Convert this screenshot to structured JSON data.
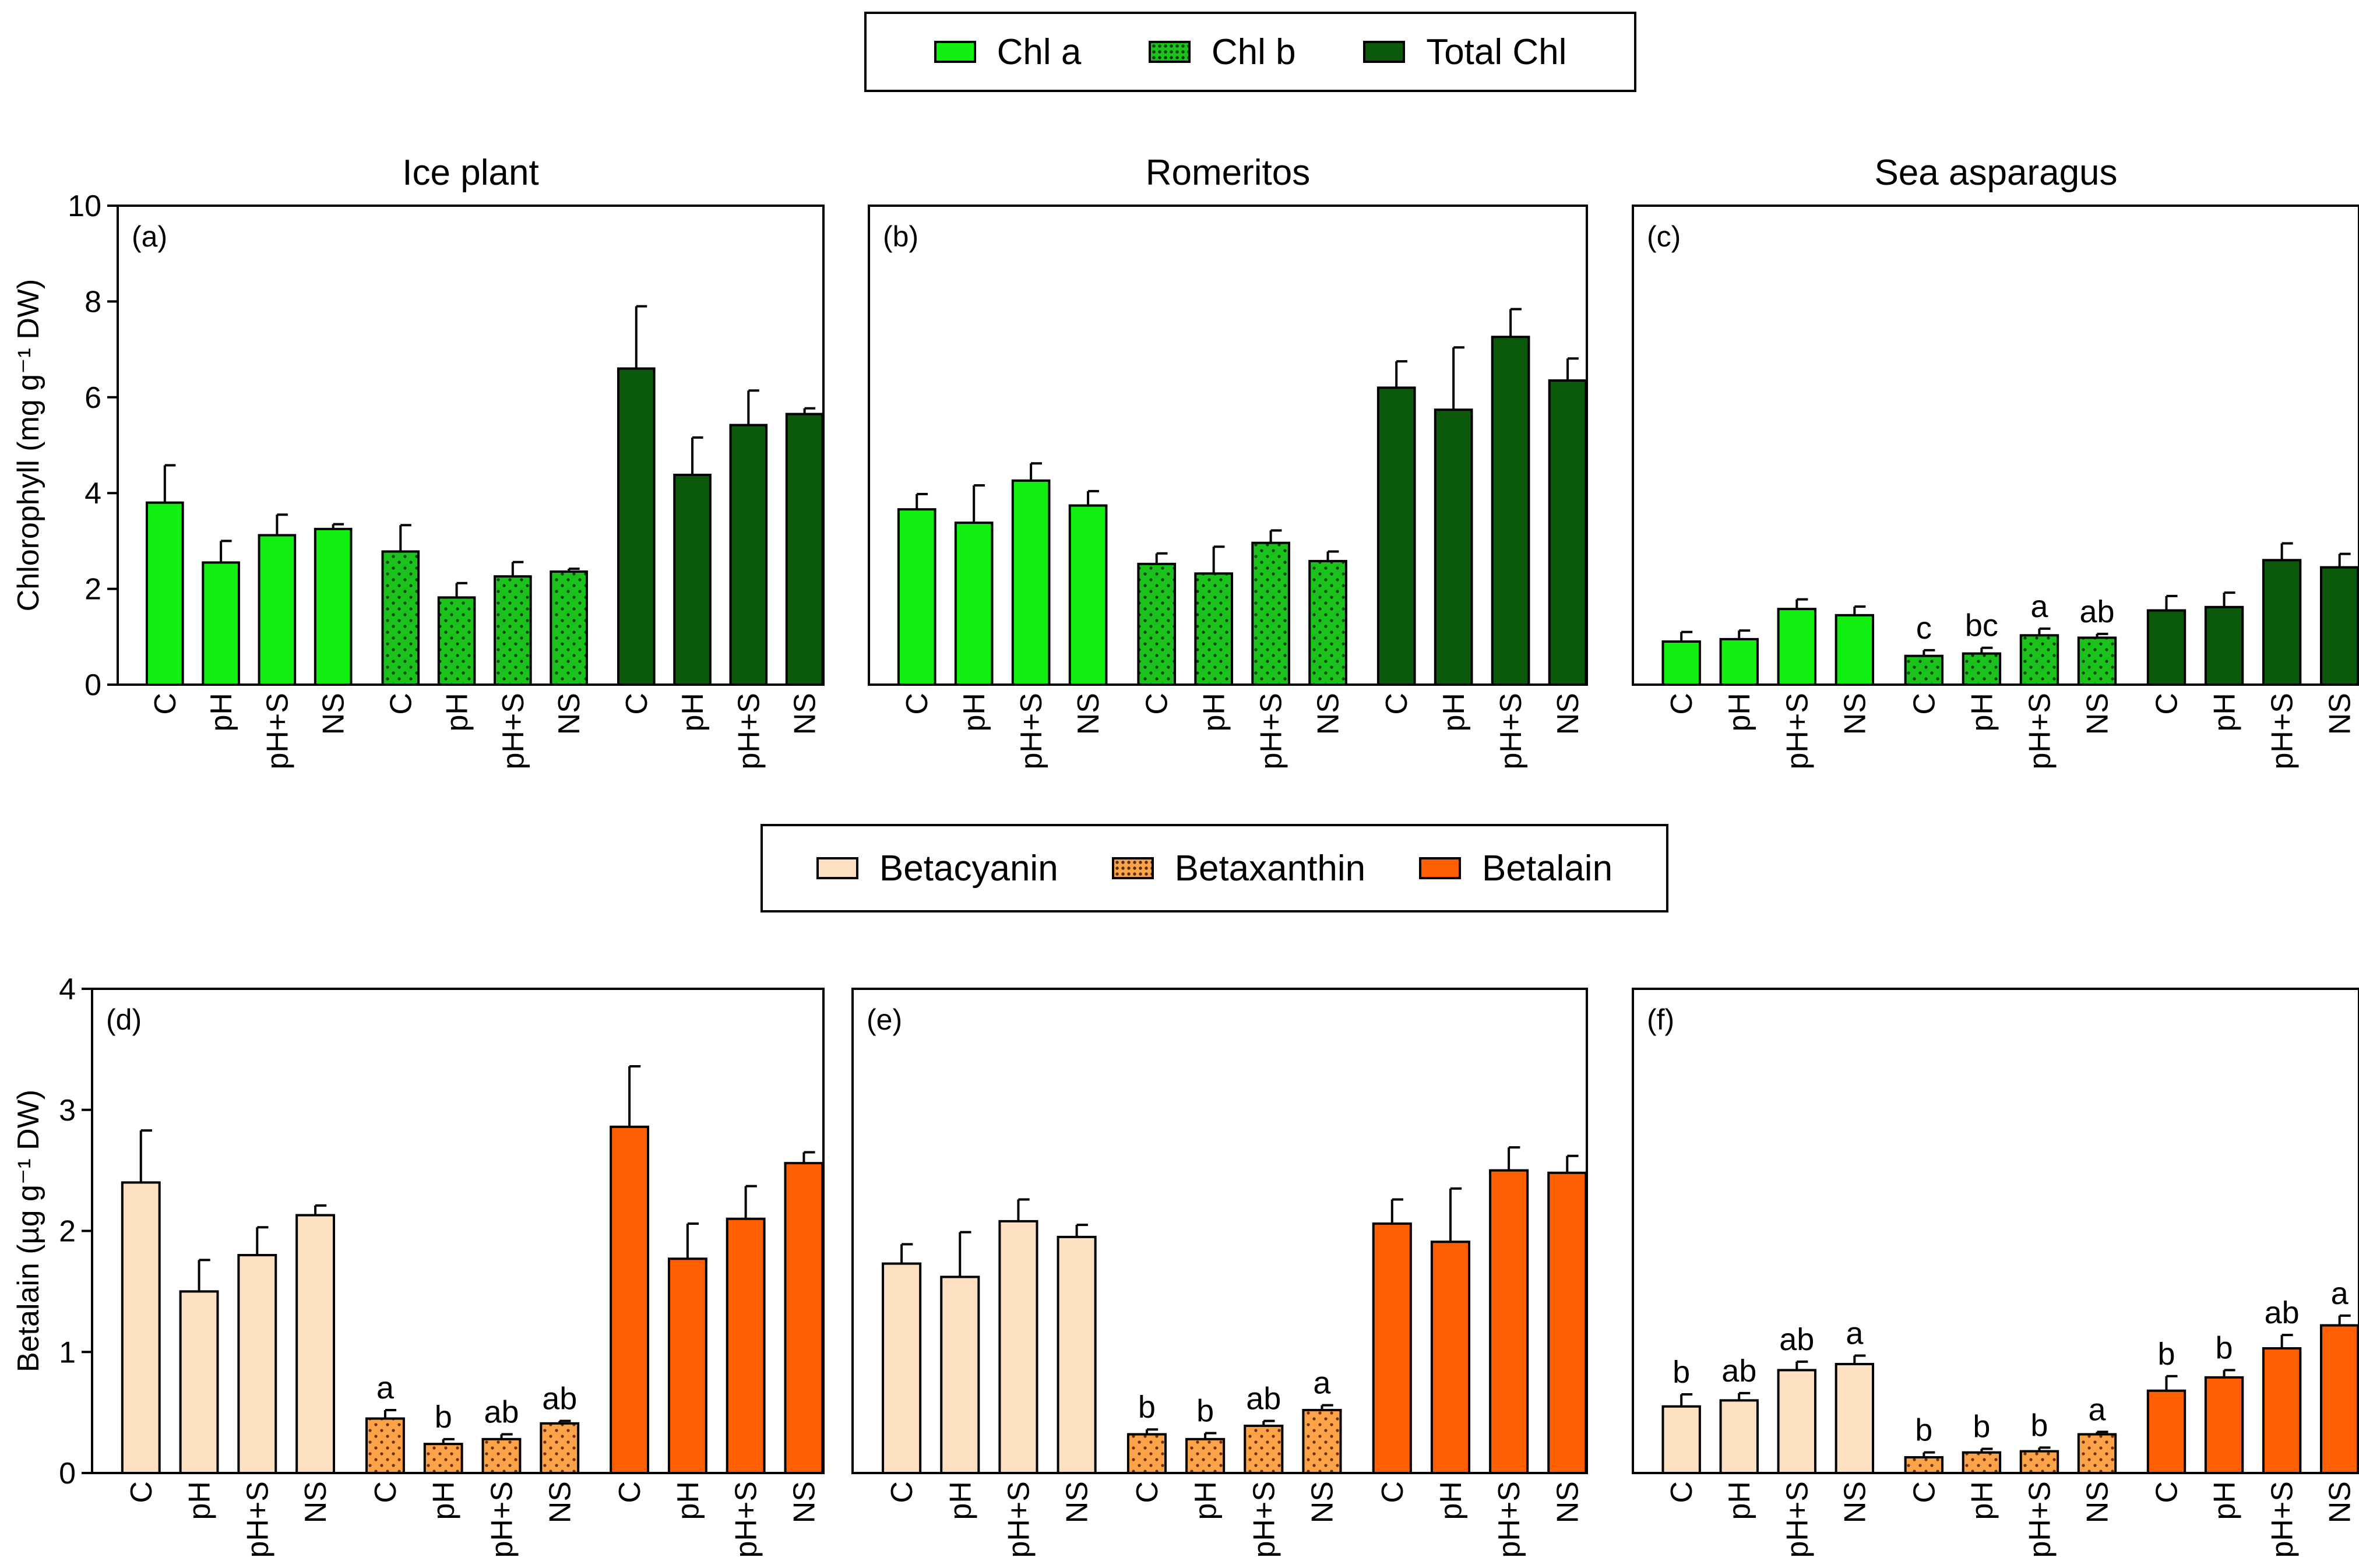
{
  "colors": {
    "chl_a": "#11f011",
    "chl_b": "#1cc21c",
    "total_chl": "#0b5a0b",
    "betacyanin": "#fde0bf",
    "betaxanthin": "#fca349",
    "betalain": "#ff5f00"
  },
  "legends": {
    "chlorophyll": [
      {
        "label": "Chl a",
        "color": "#11f011",
        "pattern": "none"
      },
      {
        "label": "Chl b",
        "color": "#1cc21c",
        "pattern": "dots"
      },
      {
        "label": "Total Chl",
        "color": "#0b5a0b",
        "pattern": "none"
      }
    ],
    "betalain": [
      {
        "label": "Betacyanin",
        "color": "#fde0bf",
        "pattern": "none"
      },
      {
        "label": "Betaxanthin",
        "color": "#fca349",
        "pattern": "dots"
      },
      {
        "label": "Betalain",
        "color": "#ff5f00",
        "pattern": "none"
      }
    ]
  },
  "chart_data": [
    {
      "type": "bar",
      "panel": "(a)",
      "title": "Ice plant",
      "ylabel": "Chlorophyll (mg g⁻¹ DW)",
      "ylim": [
        0,
        10
      ],
      "yticks": [
        0,
        2,
        4,
        6,
        8,
        10
      ],
      "categories": [
        "C",
        "pH",
        "pH+S",
        "NS"
      ],
      "series": [
        {
          "name": "Chl a",
          "values": [
            3.8,
            2.55,
            3.12,
            3.25
          ],
          "errors": [
            0.78,
            0.45,
            0.43,
            0.1
          ],
          "labels": [
            "",
            "",
            "",
            ""
          ]
        },
        {
          "name": "Chl b",
          "values": [
            2.78,
            1.82,
            2.26,
            2.36
          ],
          "errors": [
            0.55,
            0.3,
            0.3,
            0.06
          ],
          "labels": [
            "",
            "",
            "",
            ""
          ]
        },
        {
          "name": "Total Chl",
          "values": [
            6.6,
            4.38,
            5.42,
            5.65
          ],
          "errors": [
            1.3,
            0.78,
            0.72,
            0.12
          ],
          "labels": [
            "",
            "",
            "",
            ""
          ]
        }
      ]
    },
    {
      "type": "bar",
      "panel": "(b)",
      "title": "Romeritos",
      "ylabel": "",
      "ylim": [
        0,
        10
      ],
      "yticks": [],
      "categories": [
        "C",
        "pH",
        "pH+S",
        "NS"
      ],
      "series": [
        {
          "name": "Chl a",
          "values": [
            3.66,
            3.38,
            4.26,
            3.74
          ],
          "errors": [
            0.32,
            0.78,
            0.36,
            0.3
          ],
          "labels": [
            "",
            "",
            "",
            ""
          ]
        },
        {
          "name": "Chl b",
          "values": [
            2.52,
            2.32,
            2.96,
            2.58
          ],
          "errors": [
            0.22,
            0.56,
            0.26,
            0.2
          ],
          "labels": [
            "",
            "",
            "",
            ""
          ]
        },
        {
          "name": "Total Chl",
          "values": [
            6.2,
            5.74,
            7.26,
            6.35
          ],
          "errors": [
            0.55,
            1.3,
            0.58,
            0.46
          ],
          "labels": [
            "",
            "",
            "",
            ""
          ]
        }
      ]
    },
    {
      "type": "bar",
      "panel": "(c)",
      "title": "Sea asparagus",
      "ylabel": "",
      "ylim": [
        0,
        10
      ],
      "yticks": [],
      "categories": [
        "C",
        "pH",
        "pH+S",
        "NS"
      ],
      "series": [
        {
          "name": "Chl a",
          "values": [
            0.9,
            0.95,
            1.58,
            1.45
          ],
          "errors": [
            0.2,
            0.18,
            0.2,
            0.18
          ],
          "labels": [
            "",
            "",
            "",
            ""
          ]
        },
        {
          "name": "Chl b",
          "values": [
            0.6,
            0.65,
            1.03,
            0.98
          ],
          "errors": [
            0.12,
            0.12,
            0.14,
            0.08
          ],
          "labels": [
            "c",
            "bc",
            "a",
            "ab"
          ]
        },
        {
          "name": "Total Chl",
          "values": [
            1.55,
            1.62,
            2.6,
            2.45
          ],
          "errors": [
            0.3,
            0.3,
            0.35,
            0.28
          ],
          "labels": [
            "",
            "",
            "",
            ""
          ]
        }
      ]
    },
    {
      "type": "bar",
      "panel": "(d)",
      "title": "",
      "ylabel": "Betalain (µg g⁻¹ DW)",
      "ylim": [
        0,
        4
      ],
      "yticks": [
        0,
        1,
        2,
        3,
        4
      ],
      "categories": [
        "C",
        "pH",
        "pH+S",
        "NS"
      ],
      "series": [
        {
          "name": "Betacyanin",
          "values": [
            2.4,
            1.5,
            1.8,
            2.13
          ],
          "errors": [
            0.43,
            0.26,
            0.23,
            0.08
          ],
          "labels": [
            "",
            "",
            "",
            ""
          ]
        },
        {
          "name": "Betaxanthin",
          "values": [
            0.45,
            0.24,
            0.28,
            0.41
          ],
          "errors": [
            0.07,
            0.04,
            0.04,
            0.02
          ],
          "labels": [
            "a",
            "b",
            "ab",
            "ab"
          ]
        },
        {
          "name": "Betalain",
          "values": [
            2.86,
            1.77,
            2.1,
            2.56
          ],
          "errors": [
            0.5,
            0.29,
            0.27,
            0.09
          ],
          "labels": [
            "",
            "",
            "",
            ""
          ]
        }
      ]
    },
    {
      "type": "bar",
      "panel": "(e)",
      "title": "",
      "ylabel": "",
      "ylim": [
        0,
        4
      ],
      "yticks": [],
      "categories": [
        "C",
        "pH",
        "pH+S",
        "NS"
      ],
      "series": [
        {
          "name": "Betacyanin",
          "values": [
            1.73,
            1.62,
            2.08,
            1.95
          ],
          "errors": [
            0.16,
            0.37,
            0.18,
            0.1
          ],
          "labels": [
            "",
            "",
            "",
            ""
          ]
        },
        {
          "name": "Betaxanthin",
          "values": [
            0.32,
            0.28,
            0.39,
            0.52
          ],
          "errors": [
            0.04,
            0.05,
            0.04,
            0.04
          ],
          "labels": [
            "b",
            "b",
            "ab",
            "a"
          ]
        },
        {
          "name": "Betalain",
          "values": [
            2.06,
            1.91,
            2.5,
            2.48
          ],
          "errors": [
            0.2,
            0.44,
            0.19,
            0.14
          ],
          "labels": [
            "",
            "",
            "",
            ""
          ]
        }
      ]
    },
    {
      "type": "bar",
      "panel": "(f)",
      "title": "",
      "ylabel": "",
      "ylim": [
        0,
        4
      ],
      "yticks": [],
      "categories": [
        "C",
        "pH",
        "pH+S",
        "NS"
      ],
      "series": [
        {
          "name": "Betacyanin",
          "values": [
            0.55,
            0.6,
            0.85,
            0.9
          ],
          "errors": [
            0.1,
            0.06,
            0.07,
            0.07
          ],
          "labels": [
            "b",
            "ab",
            "ab",
            "a"
          ]
        },
        {
          "name": "Betaxanthin",
          "values": [
            0.13,
            0.17,
            0.18,
            0.32
          ],
          "errors": [
            0.04,
            0.03,
            0.03,
            0.02
          ],
          "labels": [
            "b",
            "b",
            "b",
            "a"
          ]
        },
        {
          "name": "Betalain",
          "values": [
            0.68,
            0.79,
            1.03,
            1.22
          ],
          "errors": [
            0.12,
            0.06,
            0.11,
            0.08
          ],
          "labels": [
            "b",
            "b",
            "ab",
            "a"
          ]
        }
      ]
    }
  ]
}
